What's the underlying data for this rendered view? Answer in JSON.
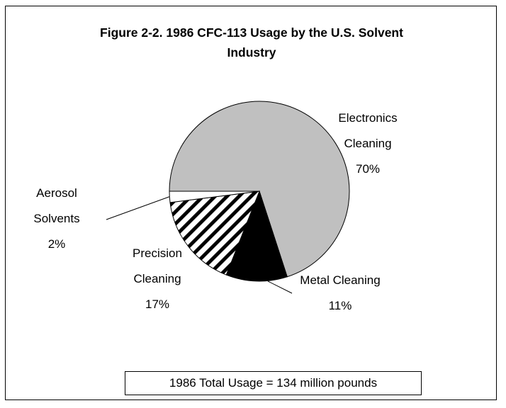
{
  "chart_data": {
    "type": "pie",
    "title": "Figure 2-2. 1986 CFC-113 Usage by the U.S. Solvent Industry",
    "categories": [
      "Electronics Cleaning",
      "Metal Cleaning",
      "Precision Cleaning",
      "Aerosol Solvents"
    ],
    "values": [
      70,
      11,
      17,
      2
    ],
    "value_labels": [
      "70%",
      "11%",
      "17%",
      "2%"
    ],
    "colors": [
      "#c0c0c0",
      "#000000",
      "#ffffff",
      "#ffffff"
    ],
    "hatch": [
      false,
      false,
      true,
      false
    ],
    "annotation": "1986 Total Usage = 134 million pounds"
  }
}
